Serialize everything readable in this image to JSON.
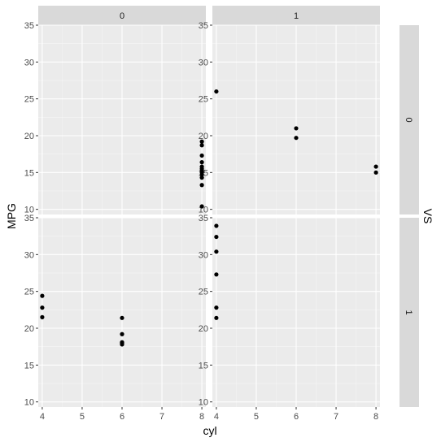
{
  "chart_data": {
    "type": "scatter",
    "xlabel": "cyl",
    "ylabel": "MPG",
    "facet_col_labels": [
      "0",
      "1"
    ],
    "facet_row_labels": [
      "0",
      "1"
    ],
    "facet_row_title": "VS",
    "xlim": [
      3.9,
      8.1
    ],
    "ylim": [
      9.3,
      35.0
    ],
    "x_ticks": [
      4,
      5,
      6,
      7,
      8
    ],
    "y_ticks": [
      10,
      15,
      20,
      25,
      30,
      35
    ],
    "grid": true,
    "colors": {
      "panel": "#ebebeb",
      "grid_major": "#ffffff",
      "grid_minor": "#f5f5f5",
      "strip": "#d9d9d9",
      "point": "#000000"
    },
    "panels": [
      {
        "col": "0",
        "row": "0",
        "x": [
          8,
          8,
          8,
          8,
          8,
          8,
          8,
          8,
          8,
          8,
          8,
          8
        ],
        "y": [
          10.4,
          13.3,
          14.3,
          14.7,
          15.2,
          15.5,
          15.8,
          16.4,
          17.3,
          18.7,
          19.2,
          15.0
        ]
      },
      {
        "col": "1",
        "row": "0",
        "x": [
          4,
          6,
          6,
          8,
          8
        ],
        "y": [
          26.0,
          21.0,
          19.7,
          15.8,
          15.0
        ]
      },
      {
        "col": "0",
        "row": "1",
        "x": [
          4,
          4,
          4,
          6,
          6,
          6,
          6,
          6
        ],
        "y": [
          24.4,
          22.8,
          21.5,
          21.4,
          19.2,
          18.1,
          17.8,
          18.0
        ]
      },
      {
        "col": "1",
        "row": "1",
        "x": [
          4,
          4,
          4,
          4,
          4,
          4
        ],
        "y": [
          33.9,
          32.4,
          30.4,
          27.3,
          22.8,
          21.4
        ]
      }
    ]
  }
}
